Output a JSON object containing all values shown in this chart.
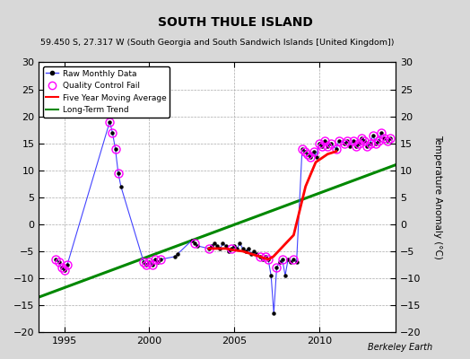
{
  "title": "SOUTH THULE ISLAND",
  "subtitle": "59.450 S, 27.317 W (South Georgia and South Sandwich Islands [United Kingdom])",
  "ylabel_right": "Temperature Anomaly (°C)",
  "credit": "Berkeley Earth",
  "xlim": [
    1993.5,
    2014.5
  ],
  "ylim": [
    -20,
    30
  ],
  "yticks": [
    -20,
    -15,
    -10,
    -5,
    0,
    5,
    10,
    15,
    20,
    25,
    30
  ],
  "xticks": [
    1995,
    2000,
    2005,
    2010
  ],
  "bg_color": "#d8d8d8",
  "plot_bg_color": "#ffffff",
  "grid_color": "#aaaaaa",
  "raw_color": "#4444ff",
  "raw_marker_color": "#000000",
  "qc_color": "#ff00ff",
  "ma_color": "#ff0000",
  "trend_color": "#008800",
  "raw_x": [
    1994.5,
    1994.67,
    1994.83,
    1995.0,
    1995.17,
    1997.67,
    1997.83,
    1998.0,
    1998.17,
    1998.33,
    1999.67,
    1999.83,
    2000.0,
    2000.17,
    2000.33,
    2000.5,
    2000.67,
    2001.5,
    2001.67,
    2002.5,
    2002.67,
    2002.83,
    2003.5,
    2003.67,
    2003.83,
    2004.0,
    2004.17,
    2004.33,
    2004.5,
    2004.67,
    2004.83,
    2005.0,
    2005.17,
    2005.33,
    2005.5,
    2005.67,
    2005.83,
    2006.0,
    2006.17,
    2006.33,
    2006.5,
    2006.67,
    2006.83,
    2007.0,
    2007.17,
    2007.33,
    2007.5,
    2007.67,
    2007.83,
    2008.0,
    2008.17,
    2008.33,
    2008.5,
    2008.67,
    2009.0,
    2009.17,
    2009.33,
    2009.5,
    2009.67,
    2009.83,
    2010.0,
    2010.17,
    2010.33,
    2010.5,
    2010.67,
    2011.0,
    2011.17,
    2011.5,
    2011.67,
    2011.83,
    2012.0,
    2012.17,
    2012.33,
    2012.5,
    2012.67,
    2012.83,
    2013.0,
    2013.17,
    2013.33,
    2013.5,
    2013.67,
    2013.83,
    2014.0,
    2014.17
  ],
  "raw_y": [
    -6.5,
    -7.0,
    -8.0,
    -8.5,
    -7.5,
    19.0,
    17.0,
    14.0,
    9.5,
    7.0,
    -7.0,
    -7.5,
    -7.0,
    -7.5,
    -6.5,
    -7.0,
    -6.5,
    -6.0,
    -5.5,
    -3.0,
    -3.5,
    -4.0,
    -4.5,
    -4.0,
    -3.5,
    -4.0,
    -4.5,
    -3.5,
    -4.0,
    -5.0,
    -4.5,
    -4.0,
    -4.5,
    -3.5,
    -4.5,
    -5.0,
    -4.5,
    -5.5,
    -5.0,
    -5.5,
    -6.0,
    -6.5,
    -6.0,
    -6.5,
    -9.5,
    -16.5,
    -8.0,
    -7.0,
    -6.5,
    -9.5,
    -6.5,
    -7.0,
    -6.5,
    -7.0,
    14.0,
    13.5,
    13.0,
    12.5,
    13.5,
    12.5,
    15.0,
    14.5,
    15.5,
    14.5,
    15.0,
    14.0,
    15.5,
    15.0,
    15.5,
    14.5,
    15.5,
    14.5,
    15.0,
    16.0,
    15.5,
    14.5,
    15.0,
    16.5,
    15.0,
    15.5,
    17.0,
    16.0,
    15.5,
    16.0
  ],
  "qc_x": [
    1994.5,
    1994.67,
    1994.83,
    1995.0,
    1995.17,
    1997.67,
    1997.83,
    1998.0,
    1998.17,
    1999.67,
    1999.83,
    2000.0,
    2000.17,
    2000.33,
    2000.67,
    2002.67,
    2003.5,
    2004.83,
    2006.5,
    2006.83,
    2007.0,
    2007.5,
    2007.83,
    2008.5,
    2009.0,
    2009.17,
    2009.33,
    2009.5,
    2009.67,
    2010.0,
    2010.17,
    2010.33,
    2010.5,
    2010.67,
    2011.0,
    2011.17,
    2011.5,
    2011.67,
    2012.0,
    2012.17,
    2012.33,
    2012.5,
    2012.67,
    2012.83,
    2013.0,
    2013.17,
    2013.33,
    2013.5,
    2013.67,
    2013.83,
    2014.0,
    2014.17
  ],
  "qc_y": [
    -6.5,
    -7.0,
    -8.0,
    -8.5,
    -7.5,
    19.0,
    17.0,
    14.0,
    9.5,
    -7.0,
    -7.5,
    -7.0,
    -7.5,
    -6.5,
    -6.5,
    -3.5,
    -4.5,
    -4.5,
    -6.0,
    -6.0,
    -6.5,
    -8.0,
    -6.5,
    -6.5,
    14.0,
    13.5,
    13.0,
    12.5,
    13.5,
    15.0,
    14.5,
    15.5,
    14.5,
    15.0,
    14.0,
    15.5,
    15.0,
    15.5,
    15.5,
    14.5,
    15.0,
    16.0,
    15.5,
    14.5,
    15.0,
    16.5,
    15.0,
    15.5,
    17.0,
    16.0,
    15.5,
    16.0
  ],
  "ma_x": [
    2003.5,
    2004.5,
    2005.0,
    2005.5,
    2006.0,
    2006.5,
    2007.0,
    2007.3,
    2008.5,
    2009.2,
    2009.8,
    2010.5,
    2011.0
  ],
  "ma_y": [
    -4.5,
    -4.5,
    -4.8,
    -5.0,
    -5.5,
    -6.0,
    -6.5,
    -6.0,
    -2.0,
    7.0,
    11.5,
    13.0,
    13.5
  ],
  "trend_x": [
    1993.5,
    2014.5
  ],
  "trend_y": [
    -13.5,
    11.0
  ]
}
